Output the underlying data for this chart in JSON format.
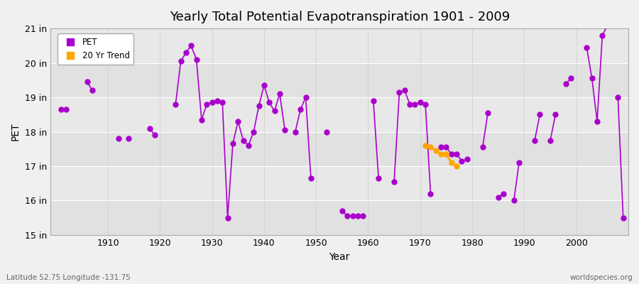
{
  "title": "Yearly Total Potential Evapotranspiration 1901 - 2009",
  "xlabel": "Year",
  "ylabel": "PET",
  "bottom_left": "Latitude 52.75 Longitude -131.75",
  "bottom_right": "worldspecies.org",
  "pet_color": "#AA00CC",
  "trend_color": "#FFA500",
  "fig_bg": "#F0F0F0",
  "ax_bg": "#E8E8E8",
  "ylim": [
    15,
    21
  ],
  "ytick_vals": [
    15,
    16,
    17,
    18,
    19,
    20,
    21
  ],
  "ytick_labels": [
    "15 in",
    "16 in",
    "17 in",
    "18 in",
    "19 in",
    "20 in",
    "21 in"
  ],
  "xlim": [
    1899,
    2010
  ],
  "xtick_vals": [
    1910,
    1920,
    1930,
    1940,
    1950,
    1960,
    1970,
    1980,
    1990,
    2000
  ],
  "pet_data": {
    "1901": 18.65,
    "1902": 18.65,
    "1906": 19.45,
    "1907": 19.2,
    "1912": 17.8,
    "1914": 17.8,
    "1918": 18.1,
    "1919": 17.9,
    "1923": 18.8,
    "1924": 20.05,
    "1925": 20.3,
    "1926": 20.5,
    "1927": 20.1,
    "1928": 18.35,
    "1929": 18.8,
    "1930": 18.85,
    "1931": 18.9,
    "1932": 18.85,
    "1933": 15.5,
    "1934": 17.65,
    "1935": 18.3,
    "1936": 17.75,
    "1937": 17.6,
    "1938": 18.0,
    "1939": 18.75,
    "1940": 19.35,
    "1941": 18.85,
    "1942": 18.6,
    "1943": 19.1,
    "1944": 18.05,
    "1946": 18.0,
    "1947": 18.65,
    "1948": 19.0,
    "1949": 16.65,
    "1931b": 18.9,
    "1952": 18.0,
    "1955": 15.7,
    "1956": 15.55,
    "1957": 15.55,
    "1958": 15.55,
    "1959": 15.55,
    "1961": 18.9,
    "1962": 16.65,
    "1965": 16.55,
    "1966": 19.15,
    "1967": 19.2,
    "1968": 18.8,
    "1969": 18.8,
    "1970": 18.85,
    "1971": 18.8,
    "1972": 16.2,
    "1974": 17.55,
    "1975": 17.55,
    "1976": 17.35,
    "1977": 17.35,
    "1978": 17.15,
    "1979": 17.2,
    "1982": 17.55,
    "1983": 18.55,
    "1985": 16.1,
    "1986": 16.2,
    "1988": 16.0,
    "1989": 17.1,
    "1992": 17.75,
    "1993": 18.5,
    "1995": 17.75,
    "1996": 18.5,
    "1998": 19.4,
    "1999": 19.55,
    "2002": 20.45,
    "2003": 19.55,
    "2004": 18.3,
    "2005": 20.8,
    "2006": 21.1,
    "2008": 19.0,
    "2009": 15.5
  },
  "trend_data": {
    "1971": 17.6,
    "1972": 17.55,
    "1973": 17.45,
    "1974": 17.35,
    "1975": 17.35,
    "1976": 17.1,
    "1977": 17.0
  },
  "linewidth": 1.2,
  "markersize": 5
}
